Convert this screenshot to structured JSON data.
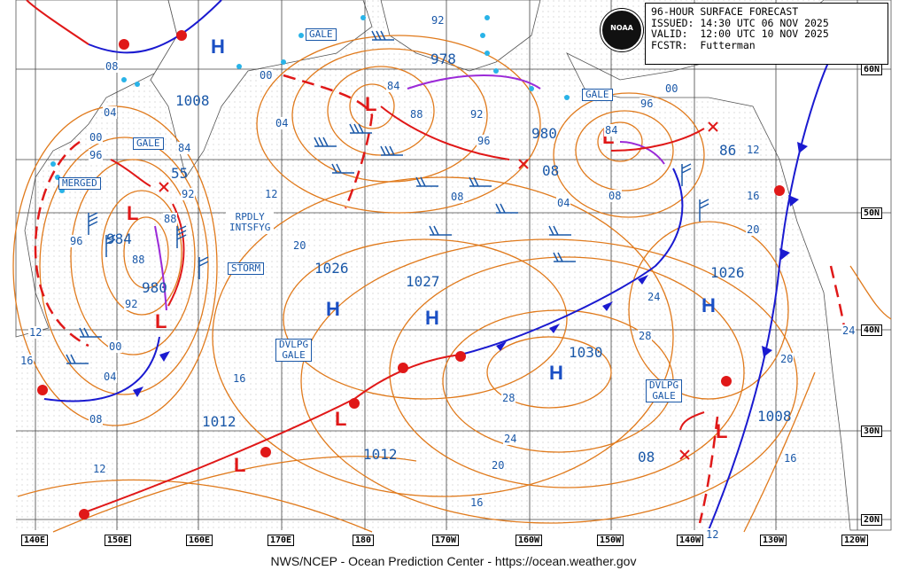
{
  "header": {
    "line1": "96-HOUR SURFACE FORECAST",
    "line2": "ISSUED: 14:30 UTC 06 NOV 2025",
    "line3": "VALID:  12:00 UTC 10 NOV 2025",
    "line4": "FCSTR:  Futterman",
    "logo_text": "NOAA"
  },
  "credit": "NWS/NCEP - Ocean Prediction Center - https://ocean.weather.gov",
  "longitude_labels": [
    "140E",
    "150E",
    "160E",
    "170E",
    "180",
    "170W",
    "160W",
    "150W",
    "140W",
    "130W",
    "120W"
  ],
  "latitude_labels": [
    "60N",
    "50N",
    "40N",
    "30N",
    "20N"
  ],
  "warnings": {
    "gale_top": "GALE",
    "gale_left": "GALE",
    "gale_right": "GALE",
    "merged": "MERGED",
    "rpdly_intsfyg": "RPDLY\nINTSFYG",
    "storm": "STORM",
    "dvlpg_gale_mid": "DVLPG\nGALE",
    "dvlpg_gale_east": "DVLPG\nGALE"
  },
  "pressure_centers": {
    "low_984": "984",
    "low_980_left": "980",
    "low_978": "978",
    "low_980_mid": "980",
    "low_1008_nw": "1008",
    "high_1026_left": "1026",
    "high_1027": "1027",
    "high_1030": "1030",
    "high_1026_right": "1026",
    "low_1012_sw": "1012",
    "low_1012_s": "1012",
    "low_1008_e": "1008",
    "low_55": "55",
    "low_86": "86",
    "val_08_mid": "08",
    "val_08_se": "08"
  },
  "symbols": {
    "high": "H",
    "low": "L"
  },
  "isobar_labels": [
    "08",
    "04",
    "00",
    "96",
    "92",
    "88",
    "84",
    "92",
    "96",
    "00",
    "04",
    "08",
    "12",
    "16",
    "20",
    "24",
    "28",
    "92",
    "88",
    "84",
    "96",
    "00",
    "04",
    "08",
    "12",
    "16",
    "20",
    "24",
    "28",
    "24",
    "20",
    "16",
    "12",
    "08",
    "04",
    "00",
    "96",
    "92",
    "88",
    "84",
    "12",
    "16",
    "20",
    "16",
    "12"
  ],
  "colors": {
    "isobar": "#e07a1c",
    "cold_front": "#1a1ad0",
    "warm_front": "#e01818",
    "occluded": "#9b2ad8",
    "wind_barb": "#1a58a8",
    "ice": "#29b3e8",
    "grid": "#555555",
    "text_blue": "#1a58a8"
  }
}
